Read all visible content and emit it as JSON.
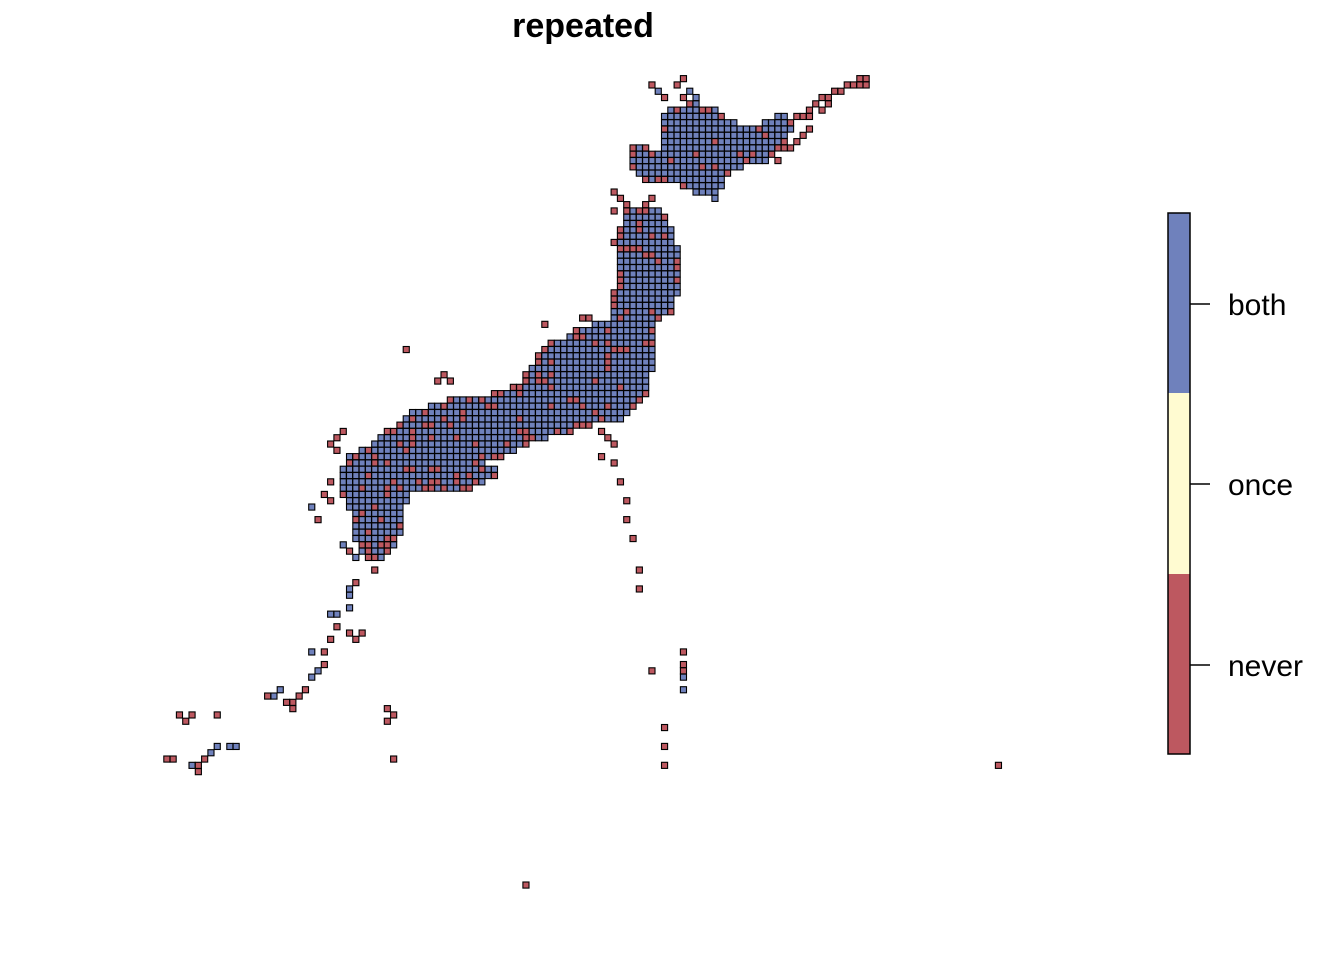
{
  "title": "repeated",
  "legend": {
    "classes": [
      {
        "label": "both",
        "color": "#6F81BC"
      },
      {
        "label": "once",
        "color": "#FFFBD1"
      },
      {
        "label": "never",
        "color": "#BD5860"
      }
    ]
  },
  "colors": {
    "cell_border": "#000000",
    "background": "#ffffff"
  }
}
